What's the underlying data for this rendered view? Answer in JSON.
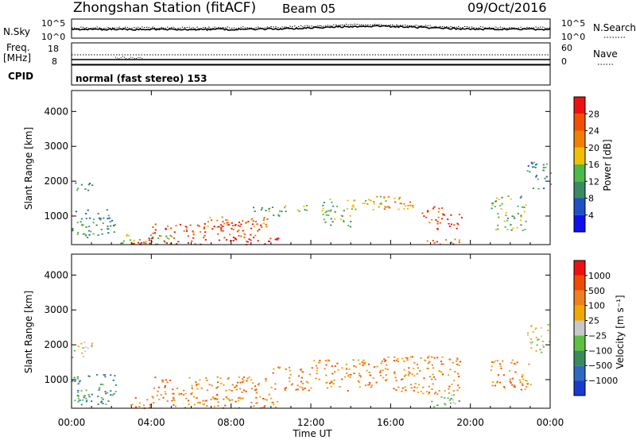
{
  "header": {
    "station": "Zhongshan Station (fitACF)",
    "beam": "Beam 05",
    "date": "09/Oct/2016"
  },
  "top_panels": {
    "noise": {
      "left_label": "N.Sky",
      "right_label": "N.Search",
      "left_ticks": [
        "10^5",
        "10^0"
      ],
      "right_ticks": [
        "10^5",
        "10^0"
      ]
    },
    "freq": {
      "left_label_1": "Freq.",
      "left_label_2": "[MHz]",
      "left_ticks": [
        "18",
        "8"
      ],
      "right_label": "Nave",
      "right_ticks": [
        "60",
        "0"
      ]
    },
    "cpid": {
      "label": "CPID",
      "mode_text": "normal (fast stereo) 153"
    }
  },
  "colors": {
    "power": [
      "#1010ee",
      "#2050c8",
      "#3a8a64",
      "#4fb84a",
      "#f0c000",
      "#f08000",
      "#f05000",
      "#ee1010"
    ],
    "velocity": [
      "#1a3ad0",
      "#2d6ac0",
      "#3a8a5a",
      "#5cc040",
      "#c8c8c8",
      "#f0a800",
      "#f08020",
      "#f04a00",
      "#ee1010"
    ]
  },
  "chart_data": [
    {
      "type": "heatmap",
      "title": "",
      "xlabel": "",
      "ylabel": "Slant Range [km]",
      "xlim": [
        0,
        24
      ],
      "ylim": [
        180,
        4600
      ],
      "y_ticks": [
        "1000",
        "2000",
        "3000",
        "4000"
      ],
      "colorbar": {
        "label": "Power [dB]",
        "ticks": [
          "4",
          "8",
          "12",
          "16",
          "20",
          "24",
          "28"
        ],
        "range": [
          0,
          32
        ]
      },
      "regions": [
        {
          "t0": 0.0,
          "t1": 1.0,
          "r0": 1700,
          "r1": 2000,
          "level": 2
        },
        {
          "t0": 0.0,
          "t1": 2.2,
          "r0": 400,
          "r1": 1200,
          "level": 2
        },
        {
          "t0": 0.1,
          "t1": 0.8,
          "r0": 400,
          "r1": 600,
          "level": 3
        },
        {
          "t0": 1.8,
          "t1": 5.0,
          "r0": 200,
          "r1": 500,
          "level": 3
        },
        {
          "t0": 3.0,
          "t1": 10.4,
          "r0": 200,
          "r1": 420,
          "level": 7
        },
        {
          "t0": 4.0,
          "t1": 9.5,
          "r0": 400,
          "r1": 800,
          "level": 6
        },
        {
          "t0": 6.5,
          "t1": 10.0,
          "r0": 700,
          "r1": 1000,
          "level": 5
        },
        {
          "t0": 7.0,
          "t1": 9.0,
          "r0": 650,
          "r1": 900,
          "level": 7
        },
        {
          "t0": 9.0,
          "t1": 10.5,
          "r0": 1000,
          "r1": 1300,
          "level": 3
        },
        {
          "t0": 10.5,
          "t1": 12.2,
          "r0": 1150,
          "r1": 1350,
          "level": 3
        },
        {
          "t0": 12.5,
          "t1": 14.2,
          "r0": 700,
          "r1": 1500,
          "level": 3
        },
        {
          "t0": 14.0,
          "t1": 15.8,
          "r0": 1200,
          "r1": 1600,
          "level": 4
        },
        {
          "t0": 15.5,
          "t1": 17.2,
          "r0": 1100,
          "r1": 1600,
          "level": 5
        },
        {
          "t0": 17.5,
          "t1": 18.6,
          "r0": 800,
          "r1": 1300,
          "level": 6
        },
        {
          "t0": 18.2,
          "t1": 19.6,
          "r0": 600,
          "r1": 1100,
          "level": 7
        },
        {
          "t0": 17.8,
          "t1": 19.8,
          "r0": 200,
          "r1": 400,
          "level": 6
        },
        {
          "t0": 21.0,
          "t1": 22.8,
          "r0": 600,
          "r1": 1600,
          "level": 3
        },
        {
          "t0": 22.8,
          "t1": 24.0,
          "r0": 1800,
          "r1": 2600,
          "level": 2
        }
      ]
    },
    {
      "type": "heatmap",
      "title": "",
      "xlabel": "Time UT",
      "ylabel": "Slant Range [km]",
      "xlim": [
        0,
        24
      ],
      "ylim": [
        180,
        4600
      ],
      "x_ticks": [
        "00:00",
        "04:00",
        "08:00",
        "12:00",
        "16:00",
        "20:00",
        "00:00"
      ],
      "y_ticks": [
        "1000",
        "2000",
        "3000",
        "4000"
      ],
      "colorbar": {
        "label": "Velocity [m s⁻¹]",
        "ticks": [
          "1000",
          "500",
          "100",
          "25",
          "−25",
          "−100",
          "−500",
          "−1000"
        ],
        "range": [
          -1200,
          1200
        ]
      },
      "regions": [
        {
          "t0": 0.0,
          "t1": 1.2,
          "r0": 1650,
          "r1": 2100,
          "level": 4
        },
        {
          "t0": 0.0,
          "t1": 2.2,
          "r0": 300,
          "r1": 1200,
          "level": 2
        },
        {
          "t0": 0.2,
          "t1": 1.0,
          "r0": 300,
          "r1": 550,
          "level": 3
        },
        {
          "t0": 2.8,
          "t1": 10.5,
          "r0": 200,
          "r1": 500,
          "level": 6
        },
        {
          "t0": 4.0,
          "t1": 10.0,
          "r0": 450,
          "r1": 1100,
          "level": 6
        },
        {
          "t0": 10.0,
          "t1": 12.0,
          "r0": 700,
          "r1": 1400,
          "level": 6
        },
        {
          "t0": 12.0,
          "t1": 15.0,
          "r0": 700,
          "r1": 1600,
          "level": 6
        },
        {
          "t0": 15.0,
          "t1": 19.5,
          "r0": 600,
          "r1": 1700,
          "level": 6
        },
        {
          "t0": 18.0,
          "t1": 19.5,
          "r0": 200,
          "r1": 600,
          "level": 3
        },
        {
          "t0": 21.0,
          "t1": 23.0,
          "r0": 700,
          "r1": 1600,
          "level": 6
        },
        {
          "t0": 22.8,
          "t1": 24.0,
          "r0": 1800,
          "r1": 2600,
          "level": 4
        }
      ]
    }
  ]
}
